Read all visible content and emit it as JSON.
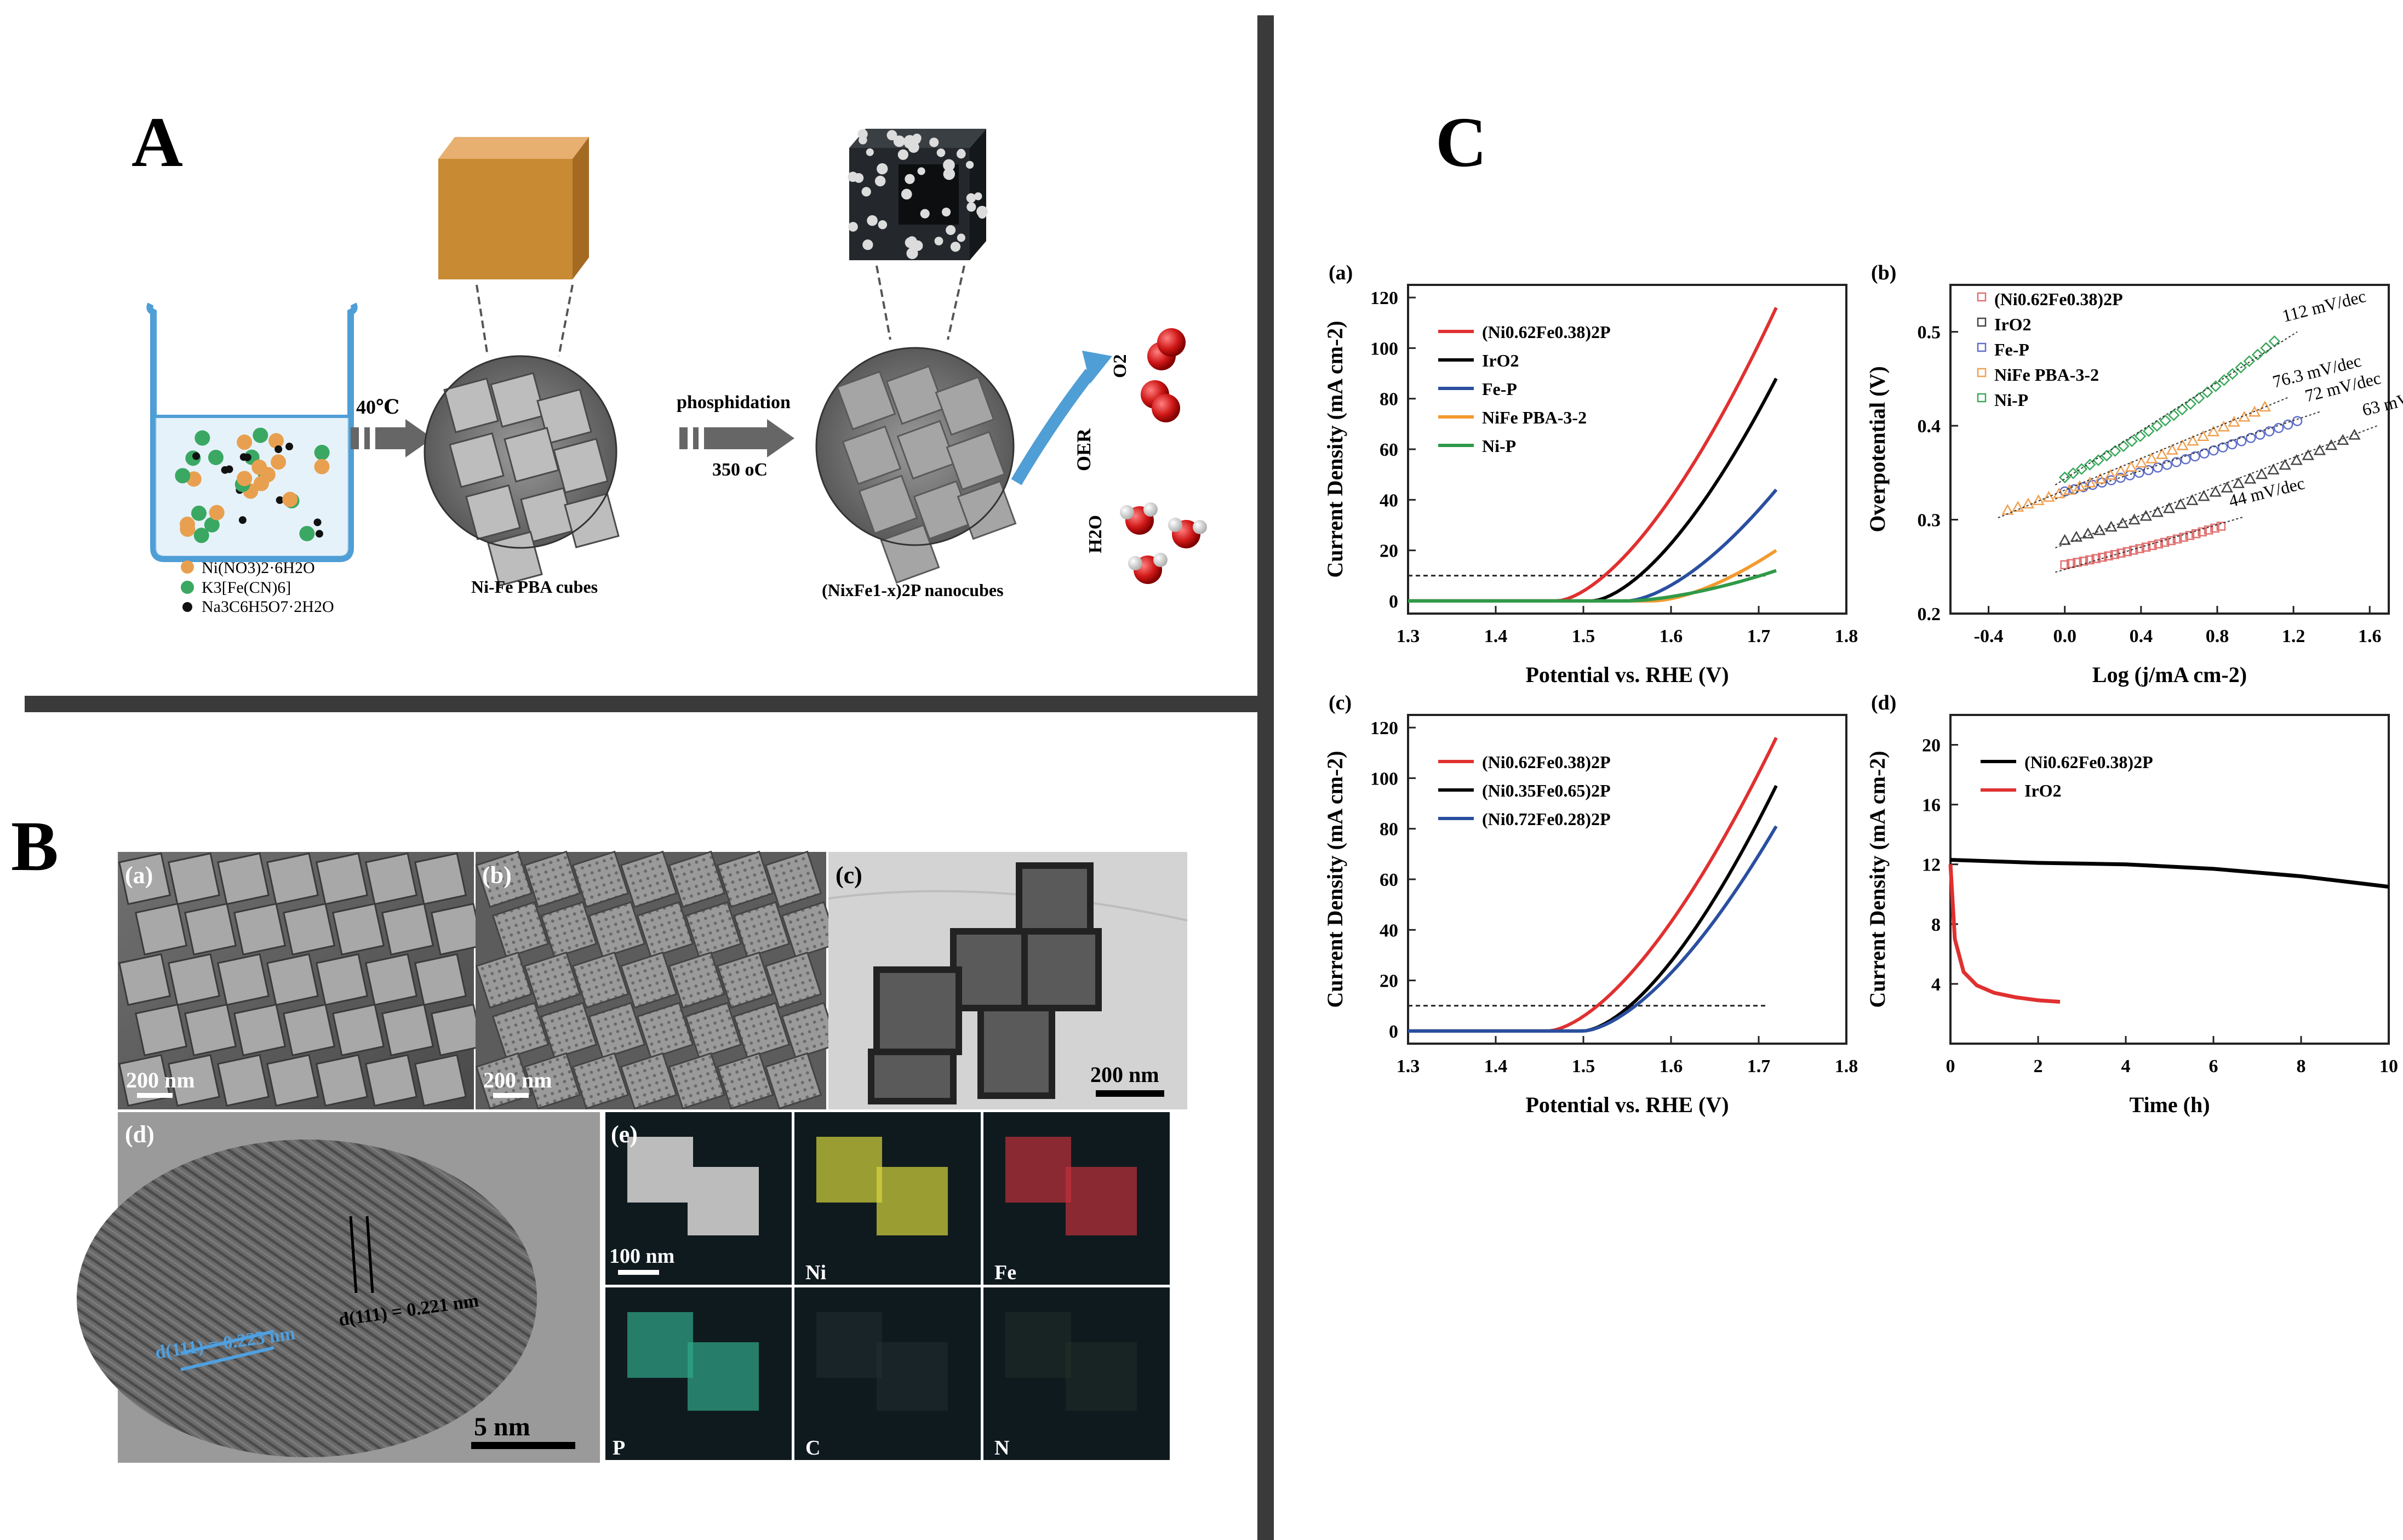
{
  "panels": {
    "A": "A",
    "B": "B",
    "C": "C"
  },
  "schematic": {
    "step1_temp": "40℃",
    "step2_label": "phosphidation",
    "step2_temp": "350 oC",
    "reagents": [
      "Ni(NO3)2·6H2O",
      "K3[Fe(CN)6]",
      "Na3C6H5O7·2H2O"
    ],
    "reagent_colors": [
      "#e8a050",
      "#3aa862",
      "#111111"
    ],
    "precursor_label": "Ni-Fe PBA cubes",
    "product_label": "(NixFe1-x)2P nanocubes",
    "oer_label": "OER",
    "o2_label": "O2",
    "h2o_label": "H2O"
  },
  "micrographs": {
    "a": {
      "tag": "(a)",
      "scale": "200 nm"
    },
    "b": {
      "tag": "(b)",
      "scale": "200 nm"
    },
    "c": {
      "tag": "(c)",
      "scale": "200 nm"
    },
    "d": {
      "tag": "(d)",
      "scale": "5 nm",
      "lattice1": "d(111) = 0.223 nm",
      "lattice2": "d(111) = 0.221 nm"
    },
    "e": {
      "tag": "(e)",
      "scale": "100 nm",
      "maps": [
        "",
        "Ni",
        "Fe",
        "P",
        "C",
        "N"
      ]
    }
  },
  "chart_data": [
    {
      "type": "line",
      "tag": "(a)",
      "xlabel": "Potential vs. RHE (V)",
      "ylabel": "Current Density (mA cm-2)",
      "xlim": [
        1.3,
        1.8
      ],
      "ylim": [
        -5,
        125
      ],
      "xticks": [
        "1.3",
        "1.4",
        "1.5",
        "1.6",
        "1.7",
        "1.8"
      ],
      "yticks": [
        "0",
        "20",
        "40",
        "60",
        "80",
        "100",
        "120"
      ],
      "legend_position": "top-left",
      "reference_line_y": 10,
      "series": [
        {
          "name": "(Ni0.62Fe0.38)2P",
          "color": "#e03030",
          "onset": 1.47,
          "end": 1.72,
          "end_value": 116
        },
        {
          "name": "IrO2",
          "color": "#000000",
          "onset": 1.51,
          "end": 1.72,
          "end_value": 88
        },
        {
          "name": "Fe-P",
          "color": "#2a4fa0",
          "onset": 1.55,
          "end": 1.72,
          "end_value": 44
        },
        {
          "name": "NiFe PBA-3-2",
          "color": "#f29a2e",
          "onset": 1.58,
          "end": 1.72,
          "end_value": 20
        },
        {
          "name": "Ni-P",
          "color": "#2f9a48",
          "onset": 1.55,
          "end": 1.72,
          "end_value": 12
        }
      ]
    },
    {
      "type": "scatter",
      "tag": "(b)",
      "xlabel": "Log (j/mA cm-2)",
      "ylabel": "Overpotential (V)",
      "xlim": [
        -0.6,
        1.7
      ],
      "ylim": [
        0.2,
        0.55
      ],
      "xticks": [
        "-0.4",
        "0.0",
        "0.4",
        "0.8",
        "1.2",
        "1.6"
      ],
      "yticks": [
        "0.2",
        "0.3",
        "0.4",
        "0.5"
      ],
      "legend_position": "top-left",
      "series": [
        {
          "name": "(Ni0.62Fe0.38)2P",
          "color": "#e07070",
          "marker": "square",
          "x0": 0.0,
          "x1": 0.82,
          "y0": 0.252,
          "y1": 0.293,
          "slope_label": "44 mV/dec"
        },
        {
          "name": "IrO2",
          "color": "#444444",
          "marker": "triangle",
          "x0": 0.0,
          "x1": 1.52,
          "y0": 0.278,
          "y1": 0.39,
          "slope_label": "63 mV/dec"
        },
        {
          "name": "Fe-P",
          "color": "#5f6ec8",
          "marker": "circle",
          "x0": 0.0,
          "x1": 1.22,
          "y0": 0.33,
          "y1": 0.405,
          "slope_label": "72 mV/dec"
        },
        {
          "name": "NiFe PBA-3-2",
          "color": "#f0a050",
          "marker": "triangle",
          "x0": -0.3,
          "x1": 1.05,
          "y0": 0.31,
          "y1": 0.42,
          "slope_label": "76.3 mV/dec"
        },
        {
          "name": "Ni-P",
          "color": "#3aa85a",
          "marker": "diamond",
          "x0": 0.0,
          "x1": 1.1,
          "y0": 0.345,
          "y1": 0.49,
          "slope_label": "112 mV/dec"
        }
      ]
    },
    {
      "type": "line",
      "tag": "(c)",
      "xlabel": "Potential vs. RHE (V)",
      "ylabel": "Current Density (mA cm-2)",
      "xlim": [
        1.3,
        1.8
      ],
      "ylim": [
        -5,
        125
      ],
      "xticks": [
        "1.3",
        "1.4",
        "1.5",
        "1.6",
        "1.7",
        "1.8"
      ],
      "yticks": [
        "0",
        "20",
        "40",
        "60",
        "80",
        "100",
        "120"
      ],
      "legend_position": "top-left",
      "reference_line_y": 10,
      "series": [
        {
          "name": "(Ni0.62Fe0.38)2P",
          "color": "#e03030",
          "onset": 1.46,
          "end": 1.72,
          "end_value": 116
        },
        {
          "name": "(Ni0.35Fe0.65)2P",
          "color": "#000000",
          "onset": 1.5,
          "end": 1.72,
          "end_value": 97
        },
        {
          "name": "(Ni0.72Fe0.28)2P",
          "color": "#2a4fa0",
          "onset": 1.5,
          "end": 1.72,
          "end_value": 81
        }
      ]
    },
    {
      "type": "line",
      "tag": "(d)",
      "xlabel": "Time (h)",
      "ylabel": "Current Density (mA cm-2)",
      "xlim": [
        0,
        10
      ],
      "ylim": [
        0,
        22
      ],
      "xticks": [
        "0",
        "2",
        "4",
        "6",
        "8",
        "10"
      ],
      "yticks": [
        "4",
        "8",
        "12",
        "16",
        "20"
      ],
      "legend_position": "top-left",
      "series": [
        {
          "name": "(Ni0.62Fe0.38)2P",
          "color": "#000000",
          "x": [
            0,
            2,
            4,
            6,
            8,
            10
          ],
          "y": [
            12.3,
            12.1,
            12.0,
            11.7,
            11.2,
            10.5
          ]
        },
        {
          "name": "IrO2",
          "color": "#e03030",
          "x": [
            0,
            0.1,
            0.3,
            0.6,
            1.0,
            1.5,
            2.0,
            2.5
          ],
          "y": [
            12.0,
            7.0,
            4.8,
            3.9,
            3.4,
            3.1,
            2.9,
            2.8
          ]
        }
      ]
    }
  ]
}
